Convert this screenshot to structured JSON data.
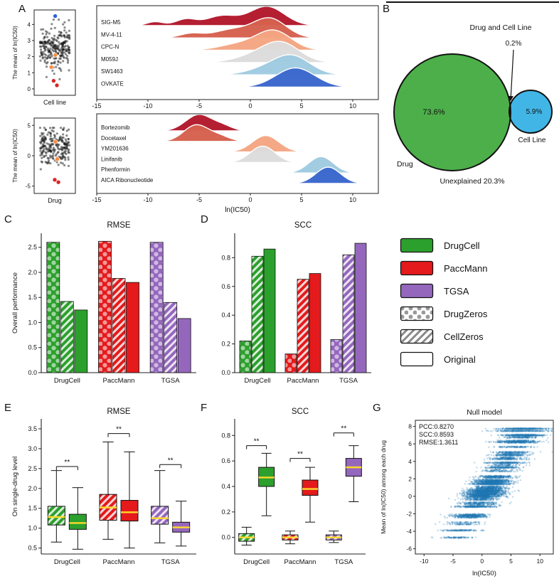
{
  "panel_labels": [
    "A",
    "B",
    "C",
    "D",
    "E",
    "F",
    "G"
  ],
  "legend": {
    "items": [
      {
        "label": "DrugCell",
        "swatch": "solid",
        "color": "#2ca02c"
      },
      {
        "label": "PaccMann",
        "swatch": "solid",
        "color": "#e41a1c"
      },
      {
        "label": "TGSA",
        "swatch": "solid",
        "color": "#9467bd"
      },
      {
        "label": "DrugZeros",
        "swatch": "dots",
        "color": "#9a9a9a"
      },
      {
        "label": "CellZeros",
        "swatch": "hatch",
        "color": "#8a8a8a"
      },
      {
        "label": "Original",
        "swatch": "plain",
        "color": "#ffffff"
      }
    ]
  },
  "chart_data": [
    {
      "id": "A-top",
      "type": "ridgeline",
      "strip": {
        "xlabel": "Cell line",
        "ylabel": "The mean of ln(IC50)",
        "yticks": [
          0,
          1,
          2,
          3,
          4
        ],
        "ylim": [
          -0.4,
          4.9
        ],
        "n": 260,
        "mu": 2.55,
        "sd": 0.62,
        "clip": [
          0.05,
          4.3
        ],
        "seed": 7,
        "highlights": [
          {
            "y": 4.52,
            "color": "#2b5fd9"
          },
          {
            "y": 0.22,
            "color": "#d62728"
          },
          {
            "y": 0.5,
            "color": "#d62728"
          },
          {
            "y": 2.1,
            "color": "#ff8c42"
          },
          {
            "y": 1.35,
            "color": "#ff8c42"
          }
        ]
      },
      "xlim": [
        -15,
        12.5
      ],
      "xticks": [
        -15,
        -10,
        -5,
        0,
        5,
        10
      ],
      "xlabel": null,
      "rows": [
        {
          "label": "SIG-M5",
          "color": "#b2182b",
          "peaks": [
            [
              1.6,
              1.7,
              1.0
            ],
            [
              -2.8,
              1.5,
              0.5
            ],
            [
              -6.3,
              1.0,
              0.33
            ],
            [
              -9.3,
              0.8,
              0.2
            ]
          ]
        },
        {
          "label": "MV-4-11",
          "color": "#d6604d",
          "peaks": [
            [
              1.9,
              1.6,
              1.0
            ],
            [
              -1.8,
              1.8,
              0.42
            ],
            [
              -5.8,
              1.1,
              0.22
            ]
          ]
        },
        {
          "label": "CPC-N",
          "color": "#f4a582",
          "peaks": [
            [
              2.3,
              1.7,
              1.0
            ],
            [
              -1.2,
              1.9,
              0.3
            ]
          ]
        },
        {
          "label": "M059J",
          "color": "#dcdcdc",
          "peaks": [
            [
              3.0,
              1.8,
              1.0
            ],
            [
              0.2,
              1.9,
              0.28
            ]
          ]
        },
        {
          "label": "SW1463",
          "color": "#9ecae1",
          "peaks": [
            [
              4.0,
              1.8,
              1.0
            ],
            [
              1.0,
              1.7,
              0.22
            ]
          ]
        },
        {
          "label": "OVKATE",
          "color": "#3a66cc",
          "peaks": [
            [
              4.4,
              1.9,
              1.0
            ]
          ]
        }
      ]
    },
    {
      "id": "A-bottom",
      "type": "ridgeline",
      "strip": {
        "xlabel": "Drug",
        "ylabel": "The mean of ln(IC50)",
        "yticks": [
          -5,
          0,
          5
        ],
        "ylim": [
          -6.2,
          6.2
        ],
        "n": 230,
        "mu": 1.5,
        "sd": 1.5,
        "clip": [
          -4.6,
          4.6
        ],
        "seed": 13,
        "highlights": [
          {
            "y": -4.35,
            "color": "#d62728"
          },
          {
            "y": -3.95,
            "color": "#d62728"
          },
          {
            "y": 2.3,
            "color": "#ff8c42"
          },
          {
            "y": -0.55,
            "color": "#ff8c42"
          }
        ]
      },
      "xlim": [
        -15,
        12.5
      ],
      "xticks": [
        -15,
        -10,
        -5,
        0,
        5,
        10
      ],
      "xlabel": "ln(IC50)",
      "rows": [
        {
          "label": "Bortezomib",
          "color": "#b2182b",
          "peaks": [
            [
              -5.0,
              1.3,
              1.0
            ],
            [
              -2.6,
              0.9,
              0.25
            ]
          ]
        },
        {
          "label": "Docetaxel",
          "color": "#d6604d",
          "peaks": [
            [
              -5.3,
              1.2,
              1.0
            ],
            [
              -3.0,
              1.0,
              0.3
            ]
          ]
        },
        {
          "label": "YM201636",
          "color": "#f4a582",
          "peaks": [
            [
              1.5,
              1.3,
              1.0
            ]
          ]
        },
        {
          "label": "Linifanib",
          "color": "#dcdcdc",
          "peaks": [
            [
              1.2,
              1.2,
              1.0
            ]
          ]
        },
        {
          "label": "Phenformin",
          "color": "#9ecae1",
          "peaks": [
            [
              6.9,
              1.2,
              1.0
            ]
          ]
        },
        {
          "label": "AICA Ribonucleotide",
          "color": "#3a66cc",
          "peaks": [
            [
              7.6,
              1.2,
              1.0
            ]
          ]
        }
      ]
    },
    {
      "id": "B",
      "type": "venn",
      "big": {
        "label": "Drug",
        "pct": "73.6%",
        "color": "#4daf4a"
      },
      "small": {
        "label": "Cell Line",
        "pct": "5.9%",
        "color": "#41b6e6"
      },
      "overlap": {
        "label": "Drug and Cell Line",
        "pct": "0.2%",
        "color": "#63cfc9"
      },
      "unexplained": "Unexplained 20.3%"
    },
    {
      "id": "C",
      "type": "bar",
      "title": "RMSE",
      "ylabel": "Overall performance",
      "categories": [
        "DrugCell",
        "PaccMann",
        "TGSA"
      ],
      "colors": [
        "#2ca02c",
        "#e41a1c",
        "#9467bd"
      ],
      "series": [
        {
          "name": "DrugZeros",
          "values": [
            2.6,
            2.62,
            2.6
          ]
        },
        {
          "name": "CellZeros",
          "values": [
            1.42,
            1.88,
            1.4
          ]
        },
        {
          "name": "Original",
          "values": [
            1.25,
            1.8,
            1.08
          ]
        }
      ],
      "yticks": [
        0,
        0.5,
        1,
        1.5,
        2,
        2.5
      ],
      "ylim": [
        0,
        2.78
      ]
    },
    {
      "id": "D",
      "type": "bar",
      "title": "SCC",
      "ylabel": null,
      "categories": [
        "DrugCell",
        "PaccMann",
        "TGSA"
      ],
      "colors": [
        "#2ca02c",
        "#e41a1c",
        "#9467bd"
      ],
      "series": [
        {
          "name": "DrugZeros",
          "values": [
            0.22,
            0.13,
            0.23
          ]
        },
        {
          "name": "CellZeros",
          "values": [
            0.81,
            0.65,
            0.82
          ]
        },
        {
          "name": "Original",
          "values": [
            0.86,
            0.69,
            0.9
          ]
        }
      ],
      "yticks": [
        0,
        0.2,
        0.4,
        0.6,
        0.8
      ],
      "ylim": [
        0,
        0.97
      ]
    },
    {
      "id": "E",
      "type": "box",
      "title": "RMSE",
      "ylabel": "On single-drug level",
      "categories": [
        "DrugCell",
        "PaccMann",
        "TGSA"
      ],
      "colors": [
        "#2ca02c",
        "#e41a1c",
        "#9467bd"
      ],
      "series": [
        "CellZeros",
        "Original"
      ],
      "boxes": [
        [
          {
            "lo": 0.65,
            "q1": 1.08,
            "med": 1.28,
            "q3": 1.55,
            "hi": 2.45
          },
          {
            "lo": 0.47,
            "q1": 0.97,
            "med": 1.13,
            "q3": 1.35,
            "hi": 2.02
          }
        ],
        [
          {
            "lo": 0.72,
            "q1": 1.2,
            "med": 1.52,
            "q3": 1.85,
            "hi": 3.17
          },
          {
            "lo": 0.5,
            "q1": 1.18,
            "med": 1.4,
            "q3": 1.7,
            "hi": 2.92
          }
        ],
        [
          {
            "lo": 0.63,
            "q1": 1.1,
            "med": 1.25,
            "q3": 1.55,
            "hi": 2.45
          },
          {
            "lo": 0.55,
            "q1": 0.9,
            "med": 1.02,
            "q3": 1.15,
            "hi": 1.68
          }
        ]
      ],
      "sig": [
        2.55,
        3.38,
        2.6
      ],
      "sig_label": "**",
      "yticks": [
        0.5,
        1,
        1.5,
        2,
        2.5,
        3,
        3.5
      ],
      "ylim": [
        0.35,
        3.75
      ]
    },
    {
      "id": "F",
      "type": "box",
      "title": "SCC",
      "ylabel": null,
      "categories": [
        "DrugCell",
        "PaccMann",
        "TGSA"
      ],
      "colors": [
        "#2ca02c",
        "#e41a1c",
        "#9467bd"
      ],
      "series": [
        "CellZeros",
        "Original"
      ],
      "boxes": [
        [
          {
            "lo": -0.06,
            "q1": -0.03,
            "med": 0.0,
            "q3": 0.03,
            "hi": 0.08
          },
          {
            "lo": 0.17,
            "q1": 0.4,
            "med": 0.47,
            "q3": 0.55,
            "hi": 0.66
          }
        ],
        [
          {
            "lo": -0.05,
            "q1": -0.02,
            "med": 0.0,
            "q3": 0.02,
            "hi": 0.05
          },
          {
            "lo": 0.12,
            "q1": 0.33,
            "med": 0.38,
            "q3": 0.45,
            "hi": 0.55
          }
        ],
        [
          {
            "lo": -0.04,
            "q1": -0.02,
            "med": 0.0,
            "q3": 0.02,
            "hi": 0.05
          },
          {
            "lo": 0.28,
            "q1": 0.48,
            "med": 0.55,
            "q3": 0.62,
            "hi": 0.72
          }
        ]
      ],
      "sig": [
        0.72,
        0.62,
        0.82
      ],
      "sig_label": "**",
      "yticks": [
        0,
        0.2,
        0.4,
        0.6,
        0.8
      ],
      "ylim": [
        -0.13,
        0.93
      ]
    },
    {
      "id": "G",
      "type": "scatter",
      "title": "Null model",
      "xlabel": "ln(IC50)",
      "ylabel": "Mean of ln(IC50) among each drug",
      "annotation": [
        "PCC:0.8270",
        "SCC:0.8593",
        "RMSE:1.3611"
      ],
      "xticks": [
        -10,
        -5,
        0,
        5,
        10
      ],
      "yticks": [
        -6,
        -4,
        -2,
        0,
        2,
        4,
        6,
        8
      ],
      "xlim": [
        -11.5,
        12.3
      ],
      "ylim": [
        -6.6,
        8.7
      ],
      "point_color": "rgba(31,119,180,0.5)",
      "gen": {
        "seed": 42,
        "n_drugs": 72,
        "noise_sd": 1.5,
        "bands": [
          {
            "y": 7.8,
            "n": 420,
            "mu": 7.2,
            "sd": 2.0
          },
          {
            "y": 7.55,
            "n": 260,
            "mu": 6.4,
            "sd": 2.2
          },
          {
            "y": 6.3,
            "n": 200,
            "mu": 5.6,
            "sd": 2.0
          }
        ]
      }
    }
  ]
}
